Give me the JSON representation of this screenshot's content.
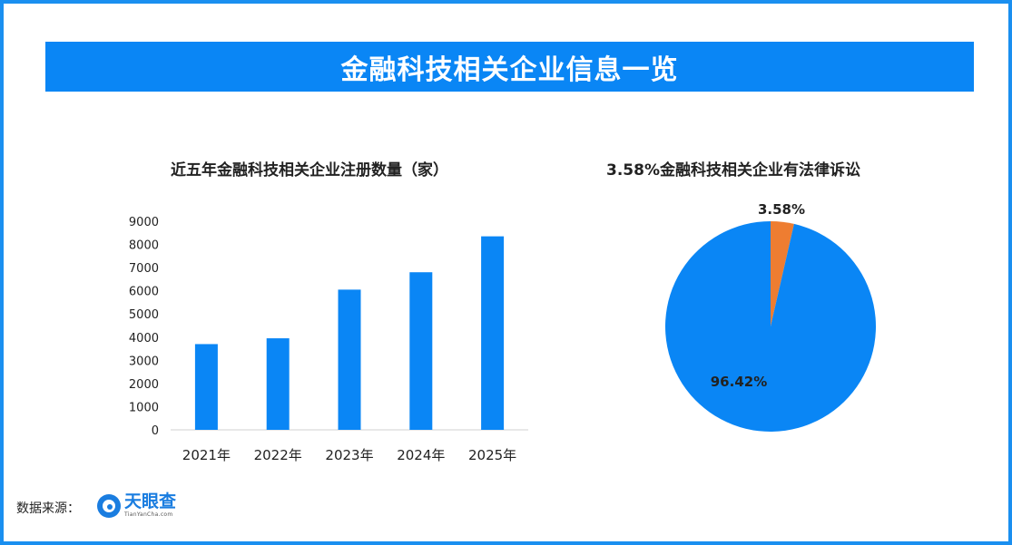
{
  "banner": {
    "title": "金融科技相关企业信息一览"
  },
  "chart_data": [
    {
      "type": "bar",
      "title": "近五年金融科技相关企业注册数量（家）",
      "categories": [
        "2021年",
        "2022年",
        "2023年",
        "2024年",
        "2025年"
      ],
      "values": [
        3700,
        3950,
        6050,
        6800,
        8350
      ],
      "ylim": [
        0,
        9000
      ],
      "yticks": [
        0,
        1000,
        2000,
        3000,
        4000,
        5000,
        6000,
        7000,
        8000,
        9000
      ],
      "xlabel": "",
      "ylabel": "",
      "grid": false,
      "color": "#0a86f5"
    },
    {
      "type": "pie",
      "title": "3.58%金融科技相关企业有法律诉讼",
      "slices": [
        {
          "label": "3.58%",
          "value": 3.58,
          "color": "#ee7d31"
        },
        {
          "label": "96.42%",
          "value": 96.42,
          "color": "#0a86f5"
        }
      ]
    }
  ],
  "footer": {
    "source_label": "数据来源：",
    "logo_cn": "天眼查",
    "logo_en": "TianYanCha.com",
    "logo_icon": "tianyancha-logo-icon"
  }
}
